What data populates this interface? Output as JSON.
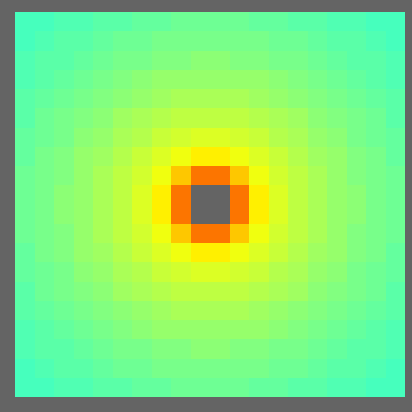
{
  "chart_data": {
    "type": "heatmap",
    "tick_labels": false,
    "zlim": [
      0,
      1
    ],
    "cells": [
      [
        0.44,
        0.44,
        0.45,
        0.45,
        0.46,
        0.46,
        0.47,
        0.47,
        0.48,
        0.48,
        0.48,
        0.48,
        0.47,
        0.47,
        0.46,
        0.46,
        0.45,
        0.45,
        0.44,
        0.44
      ],
      [
        0.44,
        0.45,
        0.46,
        0.46,
        0.47,
        0.48,
        0.48,
        0.49,
        0.49,
        0.49,
        0.49,
        0.49,
        0.49,
        0.48,
        0.48,
        0.47,
        0.46,
        0.46,
        0.45,
        0.44
      ],
      [
        0.45,
        0.46,
        0.46,
        0.47,
        0.48,
        0.49,
        0.49,
        0.5,
        0.5,
        0.51,
        0.51,
        0.5,
        0.5,
        0.49,
        0.49,
        0.48,
        0.47,
        0.46,
        0.46,
        0.45
      ],
      [
        0.45,
        0.46,
        0.47,
        0.48,
        0.49,
        0.5,
        0.51,
        0.52,
        0.52,
        0.52,
        0.52,
        0.52,
        0.52,
        0.51,
        0.5,
        0.49,
        0.48,
        0.47,
        0.46,
        0.45
      ],
      [
        0.46,
        0.47,
        0.48,
        0.49,
        0.5,
        0.51,
        0.52,
        0.53,
        0.54,
        0.54,
        0.54,
        0.54,
        0.53,
        0.52,
        0.51,
        0.5,
        0.49,
        0.48,
        0.47,
        0.46
      ],
      [
        0.46,
        0.48,
        0.49,
        0.5,
        0.51,
        0.53,
        0.54,
        0.55,
        0.56,
        0.56,
        0.56,
        0.56,
        0.55,
        0.54,
        0.53,
        0.51,
        0.5,
        0.49,
        0.48,
        0.46
      ],
      [
        0.47,
        0.48,
        0.49,
        0.51,
        0.52,
        0.54,
        0.55,
        0.57,
        0.58,
        0.59,
        0.59,
        0.58,
        0.57,
        0.55,
        0.54,
        0.52,
        0.51,
        0.49,
        0.48,
        0.47
      ],
      [
        0.47,
        0.49,
        0.5,
        0.52,
        0.53,
        0.55,
        0.57,
        0.59,
        0.61,
        0.64,
        0.64,
        0.61,
        0.59,
        0.57,
        0.55,
        0.53,
        0.52,
        0.5,
        0.49,
        0.47
      ],
      [
        0.48,
        0.49,
        0.5,
        0.52,
        0.54,
        0.56,
        0.58,
        0.61,
        0.68,
        0.76,
        0.76,
        0.68,
        0.61,
        0.58,
        0.56,
        0.54,
        0.52,
        0.5,
        0.49,
        0.48
      ],
      [
        0.48,
        0.49,
        0.51,
        0.52,
        0.54,
        0.56,
        0.59,
        0.64,
        0.76,
        null,
        null,
        0.76,
        0.64,
        0.59,
        0.56,
        0.54,
        0.52,
        0.51,
        0.49,
        0.48
      ],
      [
        0.48,
        0.49,
        0.51,
        0.52,
        0.54,
        0.56,
        0.59,
        0.64,
        0.76,
        null,
        null,
        0.76,
        0.64,
        0.59,
        0.56,
        0.54,
        0.52,
        0.51,
        0.49,
        0.48
      ],
      [
        0.48,
        0.49,
        0.5,
        0.52,
        0.54,
        0.56,
        0.58,
        0.61,
        0.68,
        0.76,
        0.76,
        0.68,
        0.61,
        0.58,
        0.56,
        0.54,
        0.52,
        0.5,
        0.49,
        0.48
      ],
      [
        0.47,
        0.49,
        0.5,
        0.52,
        0.53,
        0.55,
        0.57,
        0.59,
        0.61,
        0.64,
        0.64,
        0.61,
        0.59,
        0.57,
        0.55,
        0.53,
        0.52,
        0.5,
        0.49,
        0.47
      ],
      [
        0.47,
        0.48,
        0.49,
        0.51,
        0.52,
        0.54,
        0.55,
        0.57,
        0.58,
        0.59,
        0.59,
        0.58,
        0.57,
        0.55,
        0.54,
        0.52,
        0.51,
        0.49,
        0.48,
        0.47
      ],
      [
        0.46,
        0.48,
        0.49,
        0.5,
        0.51,
        0.53,
        0.54,
        0.55,
        0.56,
        0.56,
        0.56,
        0.56,
        0.55,
        0.54,
        0.53,
        0.51,
        0.5,
        0.49,
        0.48,
        0.46
      ],
      [
        0.46,
        0.47,
        0.48,
        0.49,
        0.5,
        0.51,
        0.52,
        0.53,
        0.54,
        0.54,
        0.54,
        0.54,
        0.53,
        0.52,
        0.51,
        0.5,
        0.49,
        0.48,
        0.47,
        0.46
      ],
      [
        0.45,
        0.46,
        0.47,
        0.48,
        0.49,
        0.5,
        0.51,
        0.52,
        0.52,
        0.52,
        0.52,
        0.52,
        0.52,
        0.51,
        0.5,
        0.49,
        0.48,
        0.47,
        0.46,
        0.45
      ],
      [
        0.45,
        0.46,
        0.46,
        0.47,
        0.48,
        0.49,
        0.49,
        0.5,
        0.5,
        0.51,
        0.51,
        0.5,
        0.5,
        0.49,
        0.49,
        0.48,
        0.47,
        0.46,
        0.46,
        0.45
      ],
      [
        0.44,
        0.45,
        0.46,
        0.46,
        0.47,
        0.48,
        0.48,
        0.49,
        0.49,
        0.49,
        0.49,
        0.49,
        0.49,
        0.48,
        0.48,
        0.47,
        0.46,
        0.46,
        0.45,
        0.44
      ],
      [
        0.44,
        0.44,
        0.45,
        0.45,
        0.46,
        0.46,
        0.47,
        0.47,
        0.48,
        0.48,
        0.48,
        0.48,
        0.47,
        0.47,
        0.46,
        0.46,
        0.45,
        0.45,
        0.44,
        0.44
      ]
    ]
  }
}
